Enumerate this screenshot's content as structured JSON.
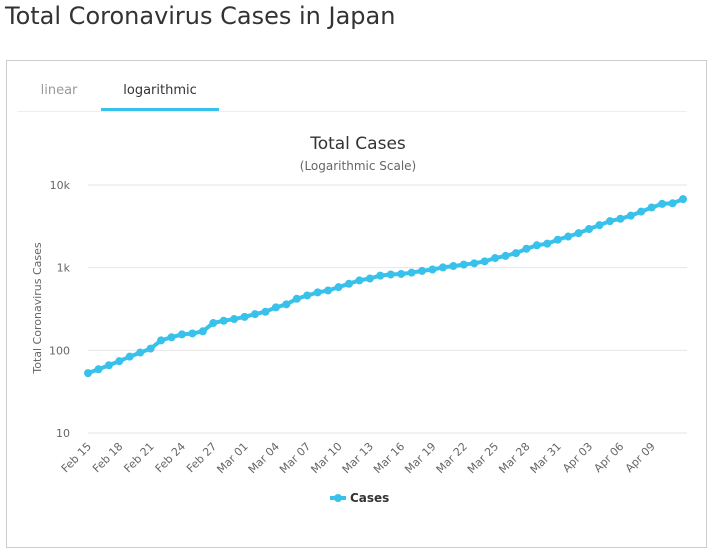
{
  "page": {
    "title": "Total Coronavirus Cases in Japan"
  },
  "tabs": [
    {
      "label": "linear",
      "active": false
    },
    {
      "label": "logarithmic",
      "active": true
    }
  ],
  "colors": {
    "series": "#38c1eb",
    "tab_active": "#38c1eb"
  },
  "chart_data": {
    "type": "line",
    "title": "Total Cases",
    "subtitle": "(Logarithmic Scale)",
    "ylabel": "Total Coronavirus Cases",
    "xlabel": "",
    "yscale": "log",
    "ylim": [
      10,
      10000
    ],
    "yticks": [
      10,
      100,
      1000,
      10000
    ],
    "ytick_labels": [
      "10",
      "100",
      "1k",
      "10k"
    ],
    "grid": true,
    "legend": "bottom-center",
    "x": [
      "Feb 15",
      "Feb 16",
      "Feb 17",
      "Feb 18",
      "Feb 19",
      "Feb 20",
      "Feb 21",
      "Feb 22",
      "Feb 23",
      "Feb 24",
      "Feb 25",
      "Feb 26",
      "Feb 27",
      "Feb 28",
      "Feb 29",
      "Mar 01",
      "Mar 02",
      "Mar 03",
      "Mar 04",
      "Mar 05",
      "Mar 06",
      "Mar 07",
      "Mar 08",
      "Mar 09",
      "Mar 10",
      "Mar 11",
      "Mar 12",
      "Mar 13",
      "Mar 14",
      "Mar 15",
      "Mar 16",
      "Mar 17",
      "Mar 18",
      "Mar 19",
      "Mar 20",
      "Mar 21",
      "Mar 22",
      "Mar 23",
      "Mar 24",
      "Mar 25",
      "Mar 26",
      "Mar 27",
      "Mar 28",
      "Mar 29",
      "Mar 30",
      "Mar 31",
      "Apr 01",
      "Apr 02",
      "Apr 03",
      "Apr 04",
      "Apr 05",
      "Apr 06",
      "Apr 07",
      "Apr 08",
      "Apr 09",
      "Apr 10",
      "Apr 11",
      "Apr 12"
    ],
    "x_tick_labels": [
      "Feb 15",
      "Feb 18",
      "Feb 21",
      "Feb 24",
      "Feb 27",
      "Mar 01",
      "Mar 04",
      "Mar 07",
      "Mar 10",
      "Mar 13",
      "Mar 16",
      "Mar 19",
      "Mar 22",
      "Mar 25",
      "Mar 28",
      "Mar 31",
      "Apr 03",
      "Apr 06",
      "Apr 09"
    ],
    "series": [
      {
        "name": "Cases",
        "values": [
          53,
          59,
          66,
          74,
          84,
          94,
          105,
          132,
          144,
          156,
          160,
          170,
          214,
          228,
          239,
          254,
          274,
          293,
          331,
          360,
          420,
          461,
          502,
          530,
          581,
          639,
          701,
          739,
          801,
          827,
          839,
          870,
          914,
          950,
          1007,
          1046,
          1089,
          1128,
          1193,
          1307,
          1387,
          1499,
          1693,
          1866,
          1953,
          2178,
          2381,
          2617,
          2935,
          3271,
          3654,
          3906,
          4257,
          4768,
          5347,
          5911,
          6005,
          6748
        ]
      }
    ]
  }
}
